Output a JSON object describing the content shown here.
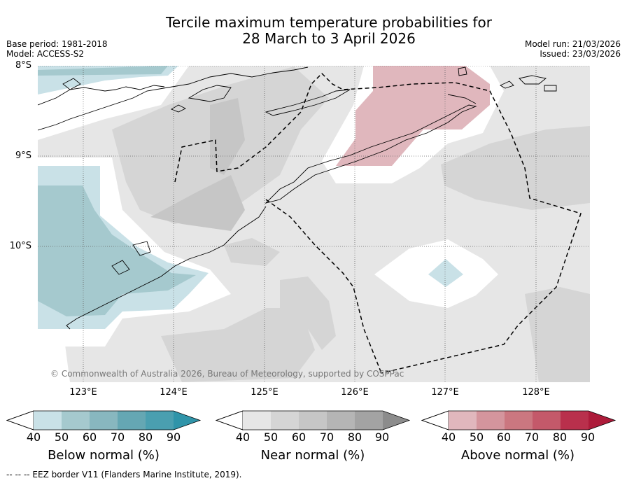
{
  "title": {
    "line1": "Tercile maximum temperature probabilities for",
    "line2": "28 March to 3 April 2026"
  },
  "meta": {
    "base_period": "Base period: 1981-2018",
    "model": "Model: ACCESS-S2",
    "model_run": "Model run: 21/03/2026",
    "issued": "Issued: 23/03/2026"
  },
  "axes": {
    "lat_labels": [
      "8°S",
      "9°S",
      "10°S"
    ],
    "lon_labels": [
      "123°E",
      "124°E",
      "125°E",
      "126°E",
      "127°E",
      "128°E"
    ]
  },
  "copyright": "© Commonwealth of Australia 2026, Bureau of Meteorology, supported by COSPPac",
  "legend": {
    "below": {
      "title": "Below normal (%)",
      "ticks": [
        "40",
        "50",
        "60",
        "70",
        "80",
        "90"
      ],
      "colors": [
        "#c9e1e7",
        "#a5c9ce",
        "#88b7bf",
        "#65a7b3",
        "#4a9fb0",
        "#2f94a9"
      ]
    },
    "near": {
      "title": "Near normal (%)",
      "ticks": [
        "40",
        "50",
        "60",
        "70",
        "80",
        "90"
      ],
      "colors": [
        "#e6e6e6",
        "#d5d5d5",
        "#c6c6c6",
        "#b5b5b5",
        "#a3a3a3",
        "#8c8c8c"
      ]
    },
    "above": {
      "title": "Above normal (%)",
      "ticks": [
        "40",
        "50",
        "60",
        "70",
        "80",
        "90"
      ],
      "colors": [
        "#e0b7bd",
        "#d4959d",
        "#cb7780",
        "#c4596a",
        "#b9304c",
        "#ad1b3a"
      ]
    }
  },
  "footer": "--  --  -- EEZ border V11 (Flanders Marine Institute, 2019)."
}
